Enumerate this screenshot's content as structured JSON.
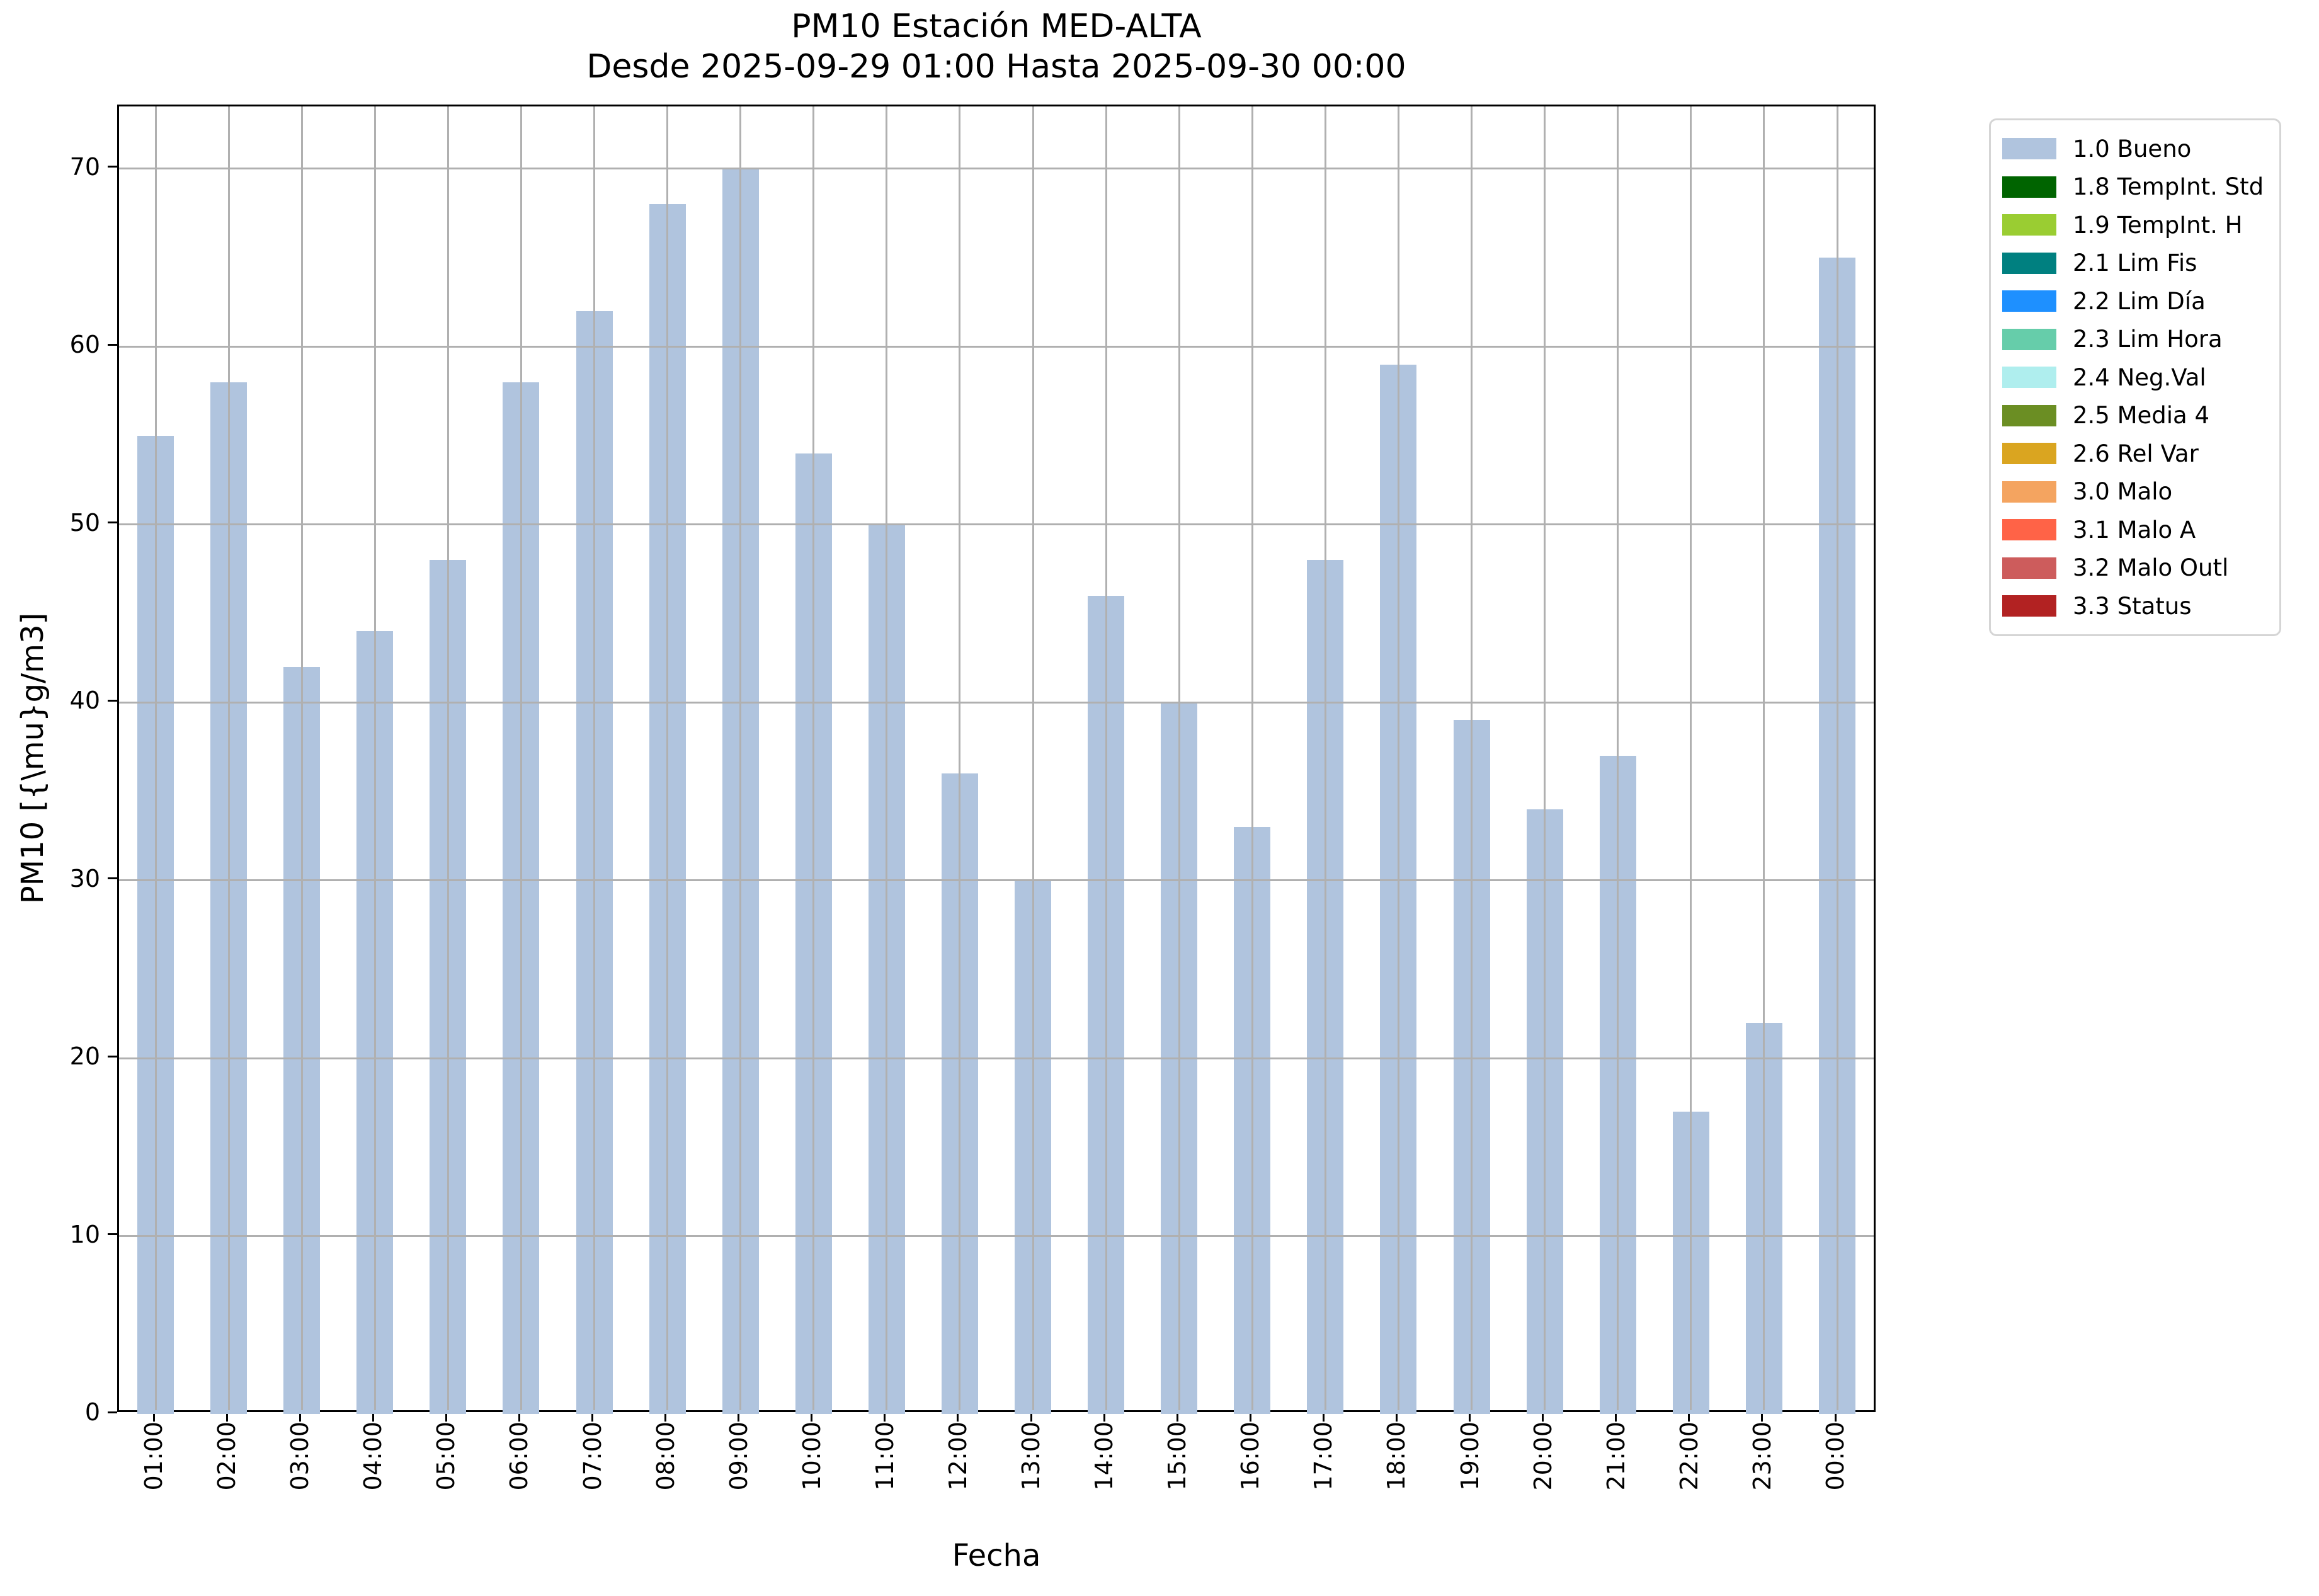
{
  "title": "PM10 Estación MED-ALTA",
  "subtitle": "Desde 2025-09-29 01:00 Hasta 2025-09-30 00:00",
  "chart_data": {
    "type": "bar",
    "title": "PM10 Estación MED-ALTA",
    "subtitle": "Desde 2025-09-29 01:00 Hasta 2025-09-30 00:00",
    "xlabel": "Fecha",
    "ylabel": "PM10 [{\\mu}g/m3]",
    "categories": [
      "01:00",
      "02:00",
      "03:00",
      "04:00",
      "05:00",
      "06:00",
      "07:00",
      "08:00",
      "09:00",
      "10:00",
      "11:00",
      "12:00",
      "13:00",
      "14:00",
      "15:00",
      "16:00",
      "17:00",
      "18:00",
      "19:00",
      "20:00",
      "21:00",
      "22:00",
      "23:00",
      "00:00"
    ],
    "series": [
      {
        "name": "1.0 Bueno",
        "color": "#b0c4de",
        "values": [
          55,
          58,
          42,
          44,
          48,
          58,
          62,
          68,
          70,
          54,
          50,
          36,
          30,
          46,
          40,
          33,
          48,
          59,
          39,
          34,
          37,
          17,
          22,
          65
        ]
      }
    ],
    "ylim": [
      0,
      73.5
    ],
    "yticks": [
      0,
      10,
      20,
      30,
      40,
      50,
      60,
      70
    ],
    "grid": true,
    "grid_color": "#b0b0b0",
    "bar_color": "#b0c4de",
    "legend_position": "right-top",
    "legend": [
      {
        "label": "1.0 Bueno",
        "color": "#b0c4de"
      },
      {
        "label": "1.8 TempInt. Std",
        "color": "#006400"
      },
      {
        "label": "1.9 TempInt. H",
        "color": "#9acd32"
      },
      {
        "label": "2.1 Lim Fis",
        "color": "#008080"
      },
      {
        "label": "2.2 Lim Día",
        "color": "#1e90ff"
      },
      {
        "label": "2.3 Lim Hora",
        "color": "#66cdaa"
      },
      {
        "label": "2.4 Neg.Val",
        "color": "#afeeee"
      },
      {
        "label": "2.5 Media 4",
        "color": "#6b8e23"
      },
      {
        "label": "2.6 Rel Var",
        "color": "#daa520"
      },
      {
        "label": "3.0 Malo",
        "color": "#f4a460"
      },
      {
        "label": "3.1 Malo A",
        "color": "#ff6347"
      },
      {
        "label": "3.2 Malo Outl",
        "color": "#cd5c5c"
      },
      {
        "label": "3.3 Status",
        "color": "#b22222"
      }
    ]
  }
}
